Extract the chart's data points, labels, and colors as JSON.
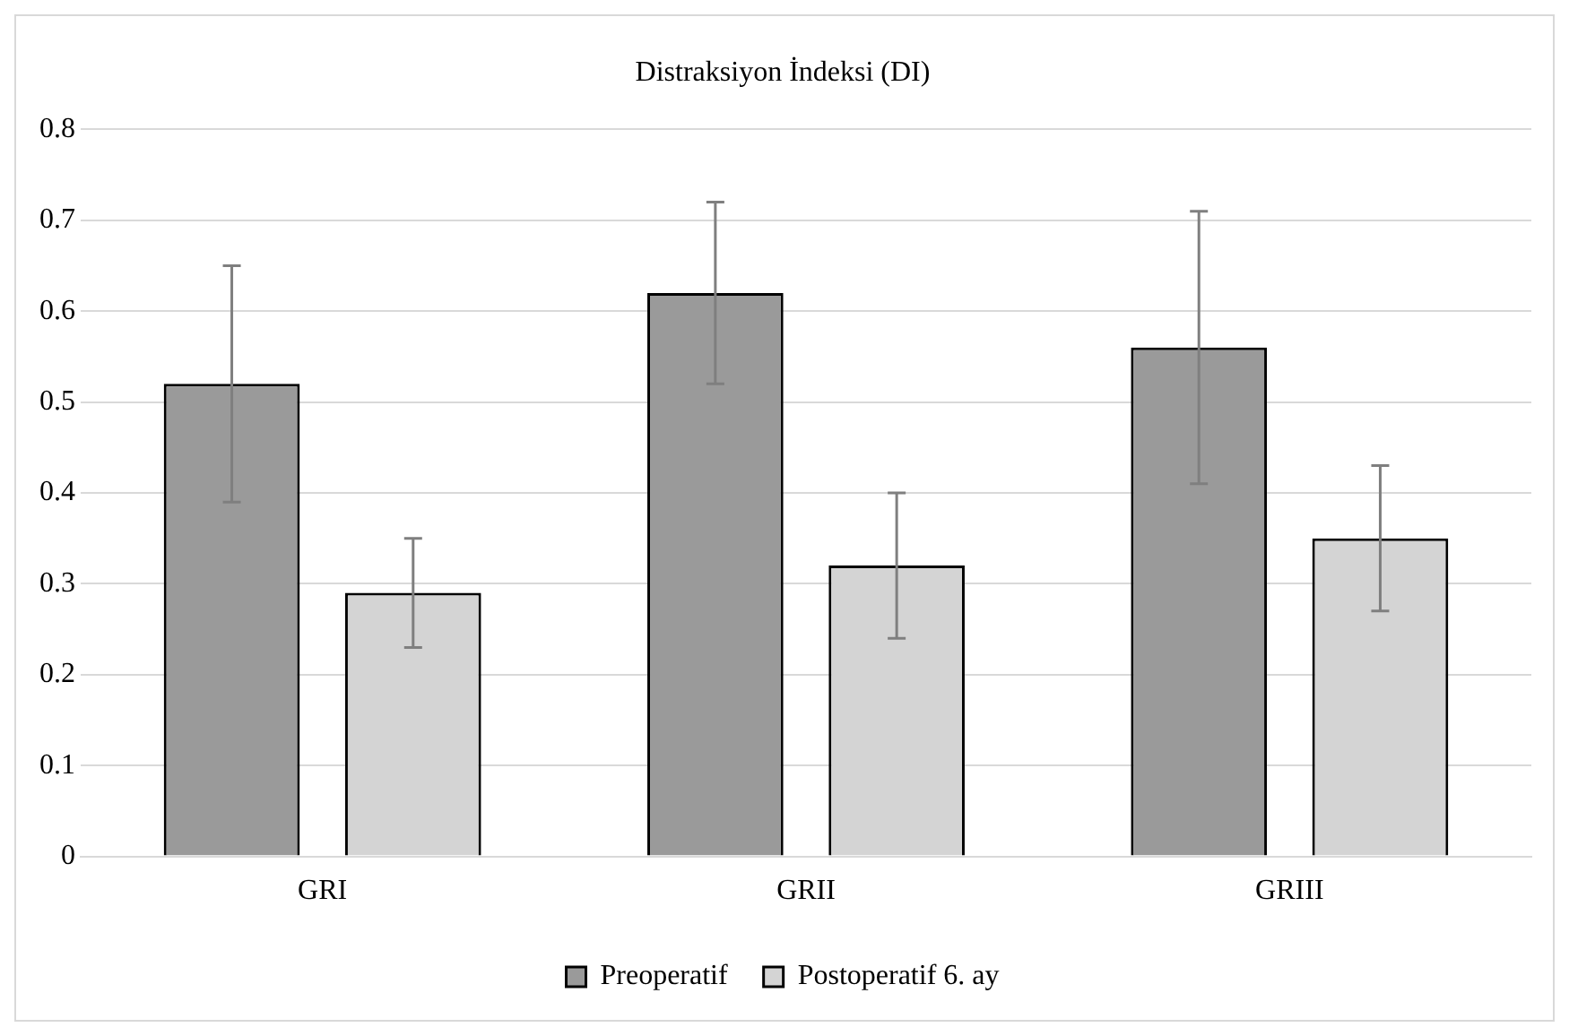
{
  "chart_data": {
    "type": "bar",
    "title": "Distraksiyon İndeksi (DI)",
    "categories": [
      "GRI",
      "GRII",
      "GRIII"
    ],
    "series": [
      {
        "name": "Preoperatif",
        "color": "#9a9a9a",
        "values": [
          0.52,
          0.62,
          0.56
        ],
        "errors": [
          0.13,
          0.1,
          0.15
        ]
      },
      {
        "name": "Postoperatif 6. ay",
        "color": "#d4d4d4",
        "values": [
          0.29,
          0.32,
          0.35
        ],
        "errors": [
          0.06,
          0.08,
          0.08
        ]
      }
    ],
    "ylim": [
      0,
      0.8
    ],
    "yticks": [
      0,
      0.1,
      0.2,
      0.3,
      0.4,
      0.5,
      0.6,
      0.7,
      0.8
    ],
    "grid": "y",
    "legend": "bottom"
  }
}
